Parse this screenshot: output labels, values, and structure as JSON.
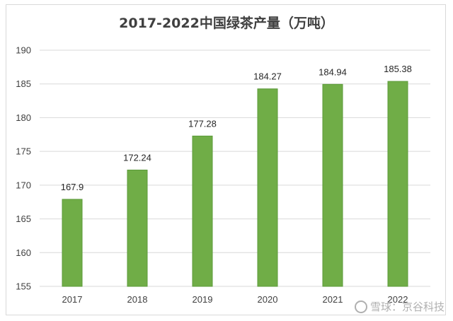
{
  "chart_data": {
    "type": "bar",
    "title": "2017-2022中国绿茶产量（万吨）",
    "categories": [
      "2017",
      "2018",
      "2019",
      "2020",
      "2021",
      "2022"
    ],
    "values": [
      167.9,
      172.24,
      177.28,
      184.27,
      184.94,
      185.38
    ],
    "data_labels": [
      "167.9",
      "172.24",
      "177.28",
      "184.27",
      "184.94",
      "185.38"
    ],
    "ylim": [
      155,
      190
    ],
    "yticks": [
      155,
      160,
      165,
      170,
      175,
      180,
      185,
      190
    ],
    "grid": true,
    "legend": "none",
    "bar_color": "#70ad47",
    "bar_border_color": "#5b9a3a",
    "grid_color": "#d9d9d9"
  },
  "watermark": {
    "text": "雪球：京谷科技"
  }
}
